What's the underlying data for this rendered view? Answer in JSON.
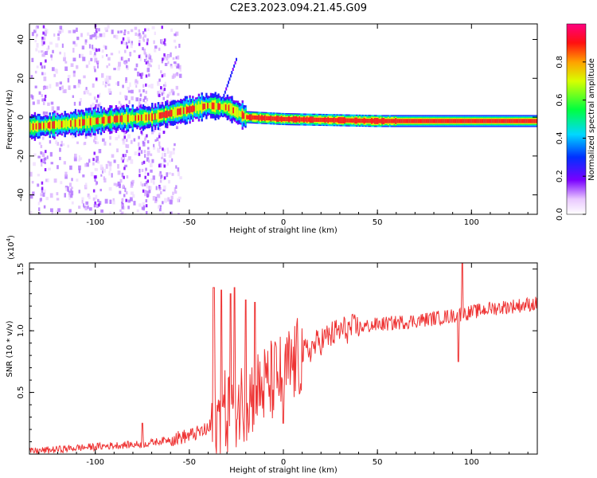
{
  "title": "C2E3.2023.094.21.45.G09",
  "chart_data": [
    {
      "type": "heatmap",
      "xlabel": "Height of straight line (km)",
      "ylabel": "Frequency (Hz)",
      "xlim": [
        -135,
        135
      ],
      "ylim": [
        -50,
        48
      ],
      "xticks": [
        -100,
        -50,
        0,
        50,
        100
      ],
      "yticks": [
        -40,
        -20,
        0,
        20,
        40
      ],
      "colorbar": {
        "label": "Normalized spectral amplitude",
        "range": [
          0,
          1
        ],
        "ticks": [
          "0.0",
          "0.2",
          "0.4",
          "0.6",
          "0.8"
        ],
        "colormap": "rainbow (white-violet-blue-cyan-green-yellow-red-magenta)"
      },
      "ridge": {
        "description_points": [
          {
            "x": -135,
            "y": -5
          },
          {
            "x": -110,
            "y": -3
          },
          {
            "x": -90,
            "y": -1
          },
          {
            "x": -70,
            "y": 0
          },
          {
            "x": -55,
            "y": 3
          },
          {
            "x": -40,
            "y": 6
          },
          {
            "x": -30,
            "y": 5
          },
          {
            "x": -20,
            "y": 0
          },
          {
            "x": 0,
            "y": -1
          },
          {
            "x": 50,
            "y": -2
          },
          {
            "x": 100,
            "y": -2
          },
          {
            "x": 135,
            "y": -2
          }
        ]
      }
    },
    {
      "type": "line",
      "xlabel": "Height of straight line (km)",
      "ylabel": "SNR (10 * v/v)",
      "y_multiplier_label": "(x10",
      "y_multiplier_exp": "4",
      "y_multiplier_close": ")",
      "xlim": [
        -135,
        135
      ],
      "ylim": [
        0,
        1.55
      ],
      "xticks": [
        -100,
        -50,
        0,
        50,
        100
      ],
      "yticks": [
        "0.5",
        "1.0",
        "1.5"
      ],
      "series": [
        {
          "color": "#ee3333",
          "trend": [
            {
              "x": -135,
              "y": 0.02
            },
            {
              "x": -110,
              "y": 0.05
            },
            {
              "x": -90,
              "y": 0.07
            },
            {
              "x": -75,
              "y": 0.08
            },
            {
              "x": -60,
              "y": 0.12
            },
            {
              "x": -50,
              "y": 0.15
            },
            {
              "x": -40,
              "y": 0.2
            },
            {
              "x": -30,
              "y": 0.35
            },
            {
              "x": -20,
              "y": 0.45
            },
            {
              "x": -10,
              "y": 0.55
            },
            {
              "x": 0,
              "y": 0.65
            },
            {
              "x": 10,
              "y": 0.8
            },
            {
              "x": 20,
              "y": 0.92
            },
            {
              "x": 30,
              "y": 1.0
            },
            {
              "x": 50,
              "y": 1.05
            },
            {
              "x": 70,
              "y": 1.08
            },
            {
              "x": 90,
              "y": 1.12
            },
            {
              "x": 110,
              "y": 1.18
            },
            {
              "x": 135,
              "y": 1.22
            }
          ],
          "spikes": [
            {
              "x": -37,
              "y": 1.35
            },
            {
              "x": -33,
              "y": 1.33
            },
            {
              "x": -28,
              "y": 1.3
            },
            {
              "x": -26,
              "y": 1.35
            },
            {
              "x": -20,
              "y": 1.25
            },
            {
              "x": -15,
              "y": 1.23
            },
            {
              "x": 0,
              "y": 0.25
            },
            {
              "x": 93,
              "y": 0.75
            },
            {
              "x": 95,
              "y": 1.55
            },
            {
              "x": -75,
              "y": 0.25
            }
          ]
        }
      ]
    }
  ]
}
